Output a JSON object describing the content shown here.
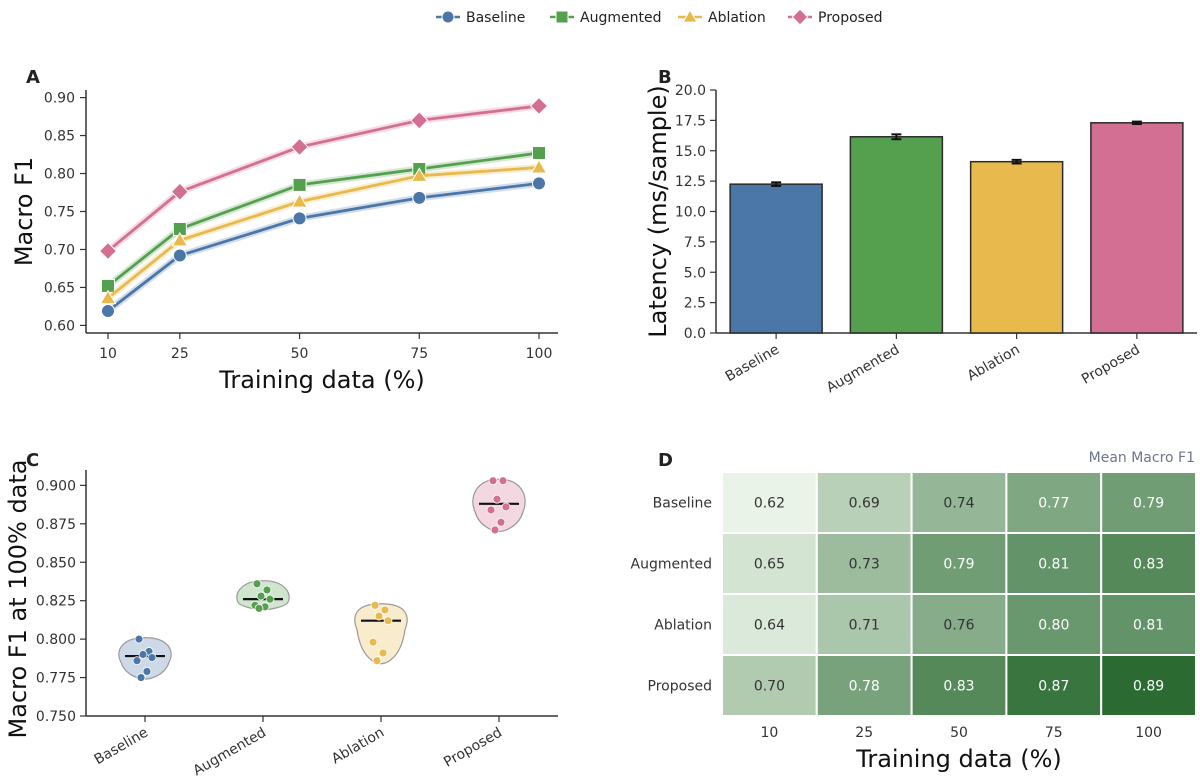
{
  "legend": {
    "position": "top-center",
    "items": [
      {
        "label": "Baseline",
        "color": "#4a76a8",
        "marker": "circle"
      },
      {
        "label": "Augmented",
        "color": "#55a04e",
        "marker": "square"
      },
      {
        "label": "Ablation",
        "color": "#e8b94c",
        "marker": "triangle"
      },
      {
        "label": "Proposed",
        "color": "#d46f94",
        "marker": "diamond"
      }
    ]
  },
  "chart_data": [
    {
      "panel": "A",
      "type": "line",
      "xlabel": "Training data (%)",
      "ylabel": "Macro F1",
      "x": [
        10,
        25,
        50,
        75,
        100
      ],
      "xticks": [
        "10",
        "25",
        "50",
        "75",
        "100"
      ],
      "ylim": [
        0.59,
        0.91
      ],
      "yticks": [
        "0.60",
        "0.65",
        "0.70",
        "0.75",
        "0.80",
        "0.85",
        "0.90"
      ],
      "series": [
        {
          "name": "Baseline",
          "color": "#4a76a8",
          "marker": "circle",
          "values": [
            0.619,
            0.692,
            0.741,
            0.768,
            0.787
          ]
        },
        {
          "name": "Augmented",
          "color": "#55a04e",
          "marker": "square",
          "values": [
            0.652,
            0.727,
            0.785,
            0.806,
            0.827
          ]
        },
        {
          "name": "Ablation",
          "color": "#e8b94c",
          "marker": "triangle",
          "values": [
            0.636,
            0.712,
            0.763,
            0.797,
            0.808
          ]
        },
        {
          "name": "Proposed",
          "color": "#d46f94",
          "marker": "diamond",
          "values": [
            0.698,
            0.776,
            0.835,
            0.87,
            0.889
          ]
        }
      ]
    },
    {
      "panel": "B",
      "type": "bar",
      "ylabel": "Latency (ms/sample)",
      "categories": [
        "Baseline",
        "Augmented",
        "Ablation",
        "Proposed"
      ],
      "values": [
        12.25,
        16.15,
        14.1,
        17.3
      ],
      "errors": [
        0.15,
        0.2,
        0.15,
        0.1
      ],
      "colors": [
        "#4a76a8",
        "#55a04e",
        "#e8b94c",
        "#d46f94"
      ],
      "ylim": [
        0,
        20
      ],
      "yticks": [
        "0.0",
        "2.5",
        "5.0",
        "7.5",
        "10.0",
        "12.5",
        "15.0",
        "17.5",
        "20.0"
      ]
    },
    {
      "panel": "C",
      "type": "scatter",
      "subtype": "violin with points and median line",
      "ylabel": "Macro F1 at 100% data",
      "categories": [
        "Baseline",
        "Augmented",
        "Ablation",
        "Proposed"
      ],
      "ylim": [
        0.75,
        0.91
      ],
      "yticks": [
        "0.750",
        "0.775",
        "0.800",
        "0.825",
        "0.850",
        "0.875",
        "0.900"
      ],
      "groups": [
        {
          "name": "Baseline",
          "color": "#4a76a8",
          "median": 0.789,
          "range": [
            0.774,
            0.801
          ],
          "points": [
            0.8,
            0.792,
            0.79,
            0.788,
            0.786,
            0.779,
            0.775
          ]
        },
        {
          "name": "Augmented",
          "color": "#55a04e",
          "median": 0.826,
          "range": [
            0.819,
            0.838
          ],
          "points": [
            0.836,
            0.832,
            0.828,
            0.826,
            0.822,
            0.821,
            0.82
          ]
        },
        {
          "name": "Ablation",
          "color": "#e8b94c",
          "median": 0.812,
          "range": [
            0.784,
            0.823
          ],
          "points": [
            0.822,
            0.819,
            0.815,
            0.812,
            0.798,
            0.791,
            0.786
          ]
        },
        {
          "name": "Proposed",
          "color": "#d46f94",
          "median": 0.888,
          "range": [
            0.87,
            0.904
          ],
          "points": [
            0.903,
            0.903,
            0.891,
            0.886,
            0.884,
            0.876,
            0.871
          ]
        }
      ]
    },
    {
      "panel": "D",
      "type": "heatmap",
      "title": "Mean Macro F1",
      "xlabel": "Training data (%)",
      "x": [
        "10",
        "25",
        "50",
        "75",
        "100"
      ],
      "rows": [
        "Baseline",
        "Augmented",
        "Ablation",
        "Proposed"
      ],
      "values": [
        [
          0.62,
          0.69,
          0.74,
          0.77,
          0.79
        ],
        [
          0.65,
          0.73,
          0.79,
          0.81,
          0.83
        ],
        [
          0.64,
          0.71,
          0.76,
          0.8,
          0.81
        ],
        [
          0.7,
          0.78,
          0.83,
          0.87,
          0.89
        ]
      ],
      "colormap": [
        "#e9f3e7",
        "#2b6b32"
      ]
    }
  ]
}
